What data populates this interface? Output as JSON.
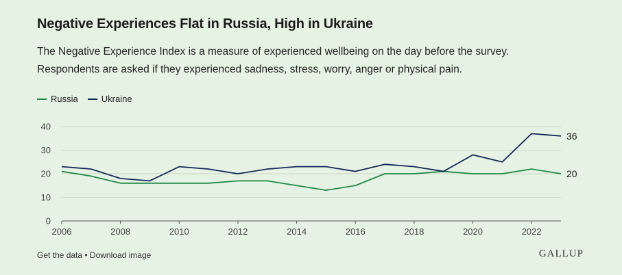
{
  "chart_data": {
    "type": "line",
    "title": "Negative Experiences Flat in Russia, High in Ukraine",
    "subtitle_lines": [
      "The Negative Experience Index is a measure of experienced wellbeing on the day before the survey.",
      "Respondents are asked if they experienced sadness, stress, worry, anger or physical pain."
    ],
    "x": [
      2006,
      2007,
      2008,
      2009,
      2010,
      2011,
      2012,
      2013,
      2014,
      2015,
      2016,
      2017,
      2018,
      2019,
      2020,
      2021,
      2022,
      2023
    ],
    "x_ticks": [
      2006,
      2008,
      2010,
      2012,
      2014,
      2016,
      2018,
      2020,
      2022
    ],
    "y_ticks": [
      0,
      10,
      20,
      30,
      40
    ],
    "ylim": [
      0,
      40
    ],
    "xlabel": "",
    "ylabel": "",
    "grid": true,
    "legend_position": "top-left",
    "series": [
      {
        "name": "Russia",
        "color": "#1f8a48",
        "values": [
          21,
          19,
          16,
          16,
          16,
          16,
          17,
          17,
          15,
          13,
          15,
          20,
          20,
          21,
          20,
          20,
          22,
          20
        ],
        "end_label": "20"
      },
      {
        "name": "Ukraine",
        "color": "#13285a",
        "values": [
          23,
          22,
          18,
          17,
          23,
          22,
          20,
          22,
          23,
          23,
          21,
          24,
          23,
          21,
          28,
          25,
          37,
          36
        ],
        "end_label": "36"
      }
    ]
  },
  "footer": {
    "get_data": "Get the data",
    "separator": " • ",
    "download": "Download image",
    "logo": "GALLUP"
  }
}
